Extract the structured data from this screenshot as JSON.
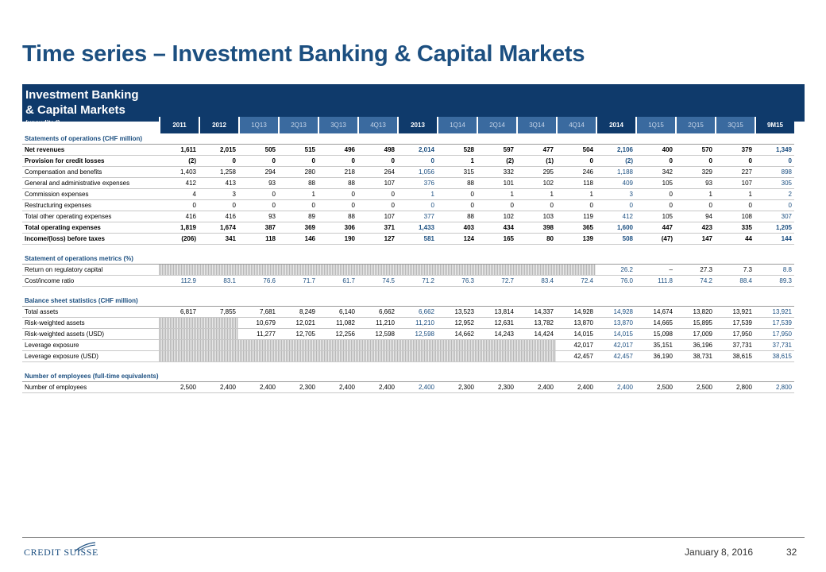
{
  "title": "Time series – Investment Banking & Capital Markets",
  "header": {
    "label_line1": "Investment Banking",
    "label_line2": "& Capital Markets",
    "label_sub": "(unaudited)",
    "columns": [
      {
        "label": "2011",
        "kind": "annual"
      },
      {
        "label": "2012",
        "kind": "annual"
      },
      {
        "label": "1Q13",
        "kind": "quarter"
      },
      {
        "label": "2Q13",
        "kind": "quarter"
      },
      {
        "label": "3Q13",
        "kind": "quarter"
      },
      {
        "label": "4Q13",
        "kind": "quarter"
      },
      {
        "label": "2013",
        "kind": "annual"
      },
      {
        "label": "1Q14",
        "kind": "quarter"
      },
      {
        "label": "2Q14",
        "kind": "quarter"
      },
      {
        "label": "3Q14",
        "kind": "quarter"
      },
      {
        "label": "4Q14",
        "kind": "quarter"
      },
      {
        "label": "2014",
        "kind": "annual"
      },
      {
        "label": "1Q15",
        "kind": "quarter"
      },
      {
        "label": "2Q15",
        "kind": "quarter"
      },
      {
        "label": "3Q15",
        "kind": "quarter"
      },
      {
        "label": "9M15",
        "kind": "annual"
      }
    ]
  },
  "rows": [
    {
      "type": "section",
      "label": "Statements of operations (CHF million)"
    },
    {
      "type": "bold",
      "label": "Net revenues",
      "values": [
        "1,611",
        "2,015",
        "505",
        "515",
        "496",
        "498",
        "2,014",
        "528",
        "597",
        "477",
        "504",
        "2,106",
        "400",
        "570",
        "379",
        "1,349"
      ]
    },
    {
      "type": "bold",
      "label": "Provision for credit losses",
      "values": [
        "(2)",
        "0",
        "0",
        "0",
        "0",
        "0",
        "0",
        "1",
        "(2)",
        "(1)",
        "0",
        "(2)",
        "0",
        "0",
        "0",
        "0"
      ]
    },
    {
      "type": "normal",
      "label": "Compensation and benefits",
      "values": [
        "1,403",
        "1,258",
        "294",
        "280",
        "218",
        "264",
        "1,056",
        "315",
        "332",
        "295",
        "246",
        "1,188",
        "342",
        "329",
        "227",
        "898"
      ]
    },
    {
      "type": "normal",
      "label": "General and administrative expenses",
      "values": [
        "412",
        "413",
        "93",
        "88",
        "88",
        "107",
        "376",
        "88",
        "101",
        "102",
        "118",
        "409",
        "105",
        "93",
        "107",
        "305"
      ]
    },
    {
      "type": "normal",
      "label": "Commission expenses",
      "values": [
        "4",
        "3",
        "0",
        "1",
        "0",
        "0",
        "1",
        "0",
        "1",
        "1",
        "1",
        "3",
        "0",
        "1",
        "1",
        "2"
      ]
    },
    {
      "type": "normal",
      "label": "Restructuring expenses",
      "values": [
        "0",
        "0",
        "0",
        "0",
        "0",
        "0",
        "0",
        "0",
        "0",
        "0",
        "0",
        "0",
        "0",
        "0",
        "0",
        "0"
      ]
    },
    {
      "type": "normal",
      "label": "Total other operating expenses",
      "values": [
        "416",
        "416",
        "93",
        "89",
        "88",
        "107",
        "377",
        "88",
        "102",
        "103",
        "119",
        "412",
        "105",
        "94",
        "108",
        "307"
      ]
    },
    {
      "type": "bold",
      "label": "Total operating expenses",
      "values": [
        "1,819",
        "1,674",
        "387",
        "369",
        "306",
        "371",
        "1,433",
        "403",
        "434",
        "398",
        "365",
        "1,600",
        "447",
        "423",
        "335",
        "1,205"
      ]
    },
    {
      "type": "bold",
      "label": "Income/(loss) before taxes",
      "values": [
        "(206)",
        "341",
        "118",
        "146",
        "190",
        "127",
        "581",
        "124",
        "165",
        "80",
        "139",
        "508",
        "(47)",
        "147",
        "44",
        "144"
      ]
    },
    {
      "type": "gap"
    },
    {
      "type": "section",
      "label": "Statement of operations metrics (%)"
    },
    {
      "type": "normal",
      "label": "Return on regulatory capital",
      "values": [
        "",
        "",
        "",
        "",
        "",
        "",
        "",
        "",
        "",
        "",
        "",
        "26.2",
        "–",
        "27.3",
        "7.3",
        "8.8"
      ],
      "hatch_from": 0,
      "hatch_to": 11
    },
    {
      "type": "normal",
      "label": "Cost/income ratio",
      "values": [
        "112.9",
        "83.1",
        "76.6",
        "71.7",
        "61.7",
        "74.5",
        "71.2",
        "76.3",
        "72.7",
        "83.4",
        "72.4",
        "76.0",
        "111.8",
        "74.2",
        "88.4",
        "89.3"
      ],
      "allblue": true
    },
    {
      "type": "gap"
    },
    {
      "type": "section",
      "label": "Balance sheet statistics (CHF million)"
    },
    {
      "type": "normal",
      "label": "Total assets",
      "values": [
        "6,817",
        "7,855",
        "7,681",
        "8,249",
        "6,140",
        "6,662",
        "6,662",
        "13,523",
        "13,814",
        "14,337",
        "14,928",
        "14,928",
        "14,674",
        "13,820",
        "13,921",
        "13,921"
      ]
    },
    {
      "type": "normal",
      "label": "Risk-weighted assets",
      "values": [
        "",
        "",
        "10,679",
        "12,021",
        "11,082",
        "11,210",
        "11,210",
        "12,952",
        "12,631",
        "13,782",
        "13,870",
        "13,870",
        "14,665",
        "15,895",
        "17,539",
        "17,539"
      ],
      "hatch_from": 0,
      "hatch_to": 2
    },
    {
      "type": "normal",
      "label": "Risk-weighted assets (USD)",
      "values": [
        "",
        "",
        "11,277",
        "12,705",
        "12,256",
        "12,598",
        "12,598",
        "14,662",
        "14,243",
        "14,424",
        "14,015",
        "14,015",
        "15,098",
        "17,009",
        "17,950",
        "17,950"
      ],
      "hatch_from": 0,
      "hatch_to": 2
    },
    {
      "type": "normal",
      "label": "Leverage exposure",
      "values": [
        "",
        "",
        "",
        "",
        "",
        "",
        "",
        "",
        "",
        "",
        "42,017",
        "42,017",
        "35,151",
        "36,196",
        "37,731",
        "37,731"
      ],
      "hatch_from": 0,
      "hatch_to": 10
    },
    {
      "type": "normal",
      "label": "Leverage exposure (USD)",
      "values": [
        "",
        "",
        "",
        "",
        "",
        "",
        "",
        "",
        "",
        "",
        "42,457",
        "42,457",
        "36,190",
        "38,731",
        "38,615",
        "38,615"
      ],
      "hatch_from": 0,
      "hatch_to": 10
    },
    {
      "type": "gap"
    },
    {
      "type": "section",
      "label": "Number of employees (full-time equivalents)"
    },
    {
      "type": "normal",
      "label": "Number of employees",
      "values": [
        "2,500",
        "2,400",
        "2,400",
        "2,300",
        "2,400",
        "2,400",
        "2,400",
        "2,300",
        "2,300",
        "2,400",
        "2,400",
        "2,400",
        "2,500",
        "2,500",
        "2,800",
        "2,800"
      ]
    }
  ],
  "footer": {
    "logo_text": "CREDIT SUISSE",
    "date": "January 8, 2016",
    "page": "32"
  },
  "colors": {
    "brand": "#1c4f80",
    "header": "#0f3a6b"
  }
}
